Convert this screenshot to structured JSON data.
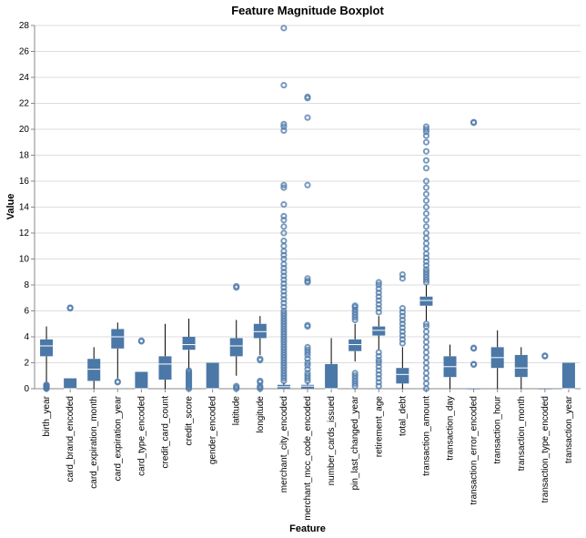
{
  "chart_data": {
    "type": "boxplot",
    "title": "Feature Magnitude Boxplot",
    "xlabel": "Feature",
    "ylabel": "Value",
    "ylim": [
      0,
      28
    ],
    "yticks": [
      0,
      2,
      4,
      6,
      8,
      10,
      12,
      14,
      16,
      18,
      20,
      22,
      24,
      26,
      28
    ],
    "grid": true,
    "colors": {
      "box": "#4c78a8",
      "median": "#ffffff",
      "whisker": "#000000",
      "outlier": "#4c78a8"
    },
    "categories": [
      "birth_year",
      "card_brand_encoded",
      "card_expiration_month",
      "card_expiration_year",
      "card_type_encoded",
      "credit_card_count",
      "credit_score",
      "gender_encoded",
      "latitude",
      "longitude",
      "merchant_city_encoded",
      "merchant_mcc_code_encoded",
      "number_cards_issued",
      "pin_last_changed_year",
      "retirement_age",
      "total_debt",
      "transaction_amount",
      "transaction_day",
      "transaction_error_encoded",
      "transaction_hour",
      "transaction_month",
      "transaction_type_encoded",
      "transaction_year"
    ],
    "boxes": [
      {
        "min": 0.5,
        "q1": 2.5,
        "median": 3.3,
        "q3": 3.8,
        "max": 4.8,
        "outliers": [
          0.0,
          0.05,
          0.1,
          0.15,
          0.2,
          0.25,
          0.3
        ]
      },
      {
        "min": 0.0,
        "q1": 0.0,
        "median": 0.0,
        "q3": 0.8,
        "max": 0.8,
        "outliers": [
          6.2,
          6.25
        ]
      },
      {
        "min": 0.0,
        "q1": 0.6,
        "median": 1.5,
        "q3": 2.3,
        "max": 3.2,
        "outliers": []
      },
      {
        "min": 0.8,
        "q1": 3.1,
        "median": 4.0,
        "q3": 4.6,
        "max": 5.1,
        "outliers": [
          0.5,
          0.55
        ]
      },
      {
        "min": 0.0,
        "q1": 0.0,
        "median": 0.0,
        "q3": 1.3,
        "max": 1.3,
        "outliers": [
          3.65,
          3.7
        ]
      },
      {
        "min": 0.0,
        "q1": 0.7,
        "median": 1.9,
        "q3": 2.5,
        "max": 5.0,
        "outliers": []
      },
      {
        "min": 1.5,
        "q1": 3.0,
        "median": 3.4,
        "q3": 4.0,
        "max": 5.4,
        "outliers": [
          0.0,
          0.1,
          0.2,
          0.3,
          0.4,
          0.5,
          0.6,
          0.7,
          0.8,
          0.9,
          1.0,
          1.1,
          1.2,
          1.3,
          1.4
        ]
      },
      {
        "min": 0.0,
        "q1": 0.0,
        "median": 0.0,
        "q3": 2.0,
        "max": 2.0,
        "outliers": []
      },
      {
        "min": 1.0,
        "q1": 2.5,
        "median": 3.3,
        "q3": 3.9,
        "max": 5.3,
        "outliers": [
          0.0,
          0.1,
          0.2,
          7.8,
          7.9
        ]
      },
      {
        "min": 2.6,
        "q1": 3.9,
        "median": 4.4,
        "q3": 5.0,
        "max": 5.6,
        "outliers": [
          0.0,
          0.1,
          0.2,
          0.5,
          0.6,
          2.2,
          2.3
        ]
      },
      {
        "min": 0.0,
        "q1": 0.0,
        "median": 0.15,
        "q3": 0.3,
        "max": 0.5,
        "outliers": [
          0.6,
          0.8,
          1.0,
          1.2,
          1.4,
          1.6,
          1.8,
          2.0,
          2.2,
          2.4,
          2.6,
          2.8,
          3.0,
          3.2,
          3.4,
          3.6,
          3.8,
          4.0,
          4.2,
          4.4,
          4.6,
          4.8,
          5.0,
          5.2,
          5.4,
          5.6,
          5.8,
          6.0,
          6.3,
          6.6,
          6.9,
          7.2,
          7.5,
          7.8,
          8.1,
          8.4,
          8.7,
          9.0,
          9.3,
          9.6,
          10.0,
          10.3,
          10.6,
          11.0,
          11.4,
          12.0,
          12.5,
          13.0,
          13.3,
          14.2,
          15.5,
          15.7,
          19.9,
          20.2,
          20.4,
          23.4,
          27.8
        ]
      },
      {
        "min": 0.0,
        "q1": 0.0,
        "median": 0.2,
        "q3": 0.3,
        "max": 0.5,
        "outliers": [
          0.6,
          0.8,
          1.0,
          1.2,
          1.5,
          1.8,
          2.0,
          2.3,
          2.6,
          2.8,
          3.0,
          3.2,
          4.8,
          4.9,
          8.2,
          8.3,
          8.5,
          15.7,
          20.9,
          22.4,
          22.5
        ]
      },
      {
        "min": 0.0,
        "q1": 0.0,
        "median": 0.0,
        "q3": 1.9,
        "max": 3.9,
        "outliers": []
      },
      {
        "min": 2.1,
        "q1": 2.9,
        "median": 3.4,
        "q3": 3.8,
        "max": 5.0,
        "outliers": [
          0.2,
          0.4,
          0.6,
          0.8,
          1.0,
          1.2,
          5.3,
          5.5,
          5.7,
          5.9,
          6.1,
          6.3,
          6.4
        ]
      },
      {
        "min": 3.0,
        "q1": 4.1,
        "median": 4.5,
        "q3": 4.8,
        "max": 5.6,
        "outliers": [
          0.2,
          0.5,
          0.8,
          1.1,
          1.4,
          1.7,
          2.0,
          2.2,
          2.5,
          2.8,
          5.9,
          6.2,
          6.5,
          6.8,
          7.1,
          7.4,
          7.7,
          8.0,
          8.2
        ]
      },
      {
        "min": 0.0,
        "q1": 0.4,
        "median": 1.1,
        "q3": 1.6,
        "max": 3.2,
        "outliers": [
          3.5,
          3.8,
          4.1,
          4.4,
          4.7,
          5.0,
          5.3,
          5.6,
          5.9,
          6.2,
          8.5,
          8.8
        ]
      },
      {
        "min": 5.2,
        "q1": 6.4,
        "median": 6.8,
        "q3": 7.1,
        "max": 8.0,
        "outliers": [
          0.0,
          0.4,
          0.8,
          1.2,
          1.6,
          2.0,
          2.4,
          2.8,
          3.2,
          3.6,
          4.0,
          4.4,
          4.8,
          5.0,
          8.2,
          8.4,
          8.6,
          8.8,
          9.0,
          9.2,
          9.5,
          9.8,
          10.1,
          10.4,
          10.8,
          11.2,
          11.6,
          12.0,
          12.5,
          13.0,
          13.5,
          14.0,
          14.5,
          15.0,
          15.5,
          16.0,
          17.0,
          17.6,
          18.3,
          19.0,
          19.5,
          19.8,
          20.0,
          20.2
        ]
      },
      {
        "min": 0.0,
        "q1": 0.9,
        "median": 1.7,
        "q3": 2.5,
        "max": 3.4,
        "outliers": []
      },
      {
        "min": 0.0,
        "q1": 0.0,
        "median": 0.0,
        "q3": 0.0,
        "max": 0.0,
        "outliers": [
          1.85,
          1.9,
          3.1,
          3.15,
          20.5,
          20.55
        ]
      },
      {
        "min": 0.0,
        "q1": 1.6,
        "median": 2.4,
        "q3": 3.2,
        "max": 4.5,
        "outliers": []
      },
      {
        "min": 0.0,
        "q1": 0.9,
        "median": 1.6,
        "q3": 2.6,
        "max": 3.2,
        "outliers": []
      },
      {
        "min": 0.0,
        "q1": 0.0,
        "median": 0.0,
        "q3": 0.0,
        "max": 0.0,
        "outliers": [
          2.5,
          2.55
        ]
      },
      {
        "min": 0.0,
        "q1": 0.0,
        "median": 0.0,
        "q3": 2.0,
        "max": 2.0,
        "outliers": []
      }
    ]
  }
}
